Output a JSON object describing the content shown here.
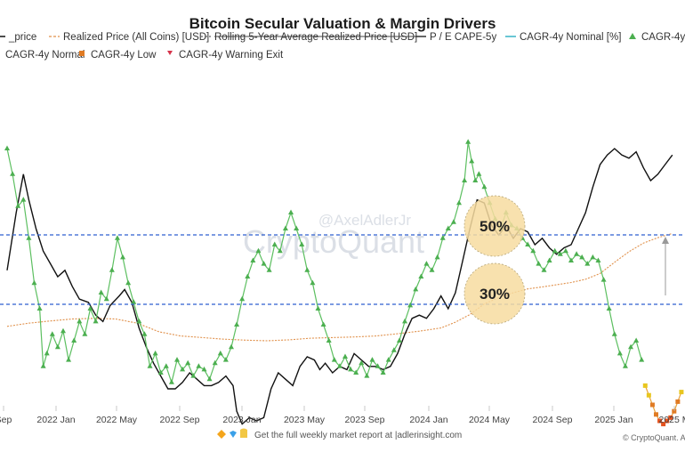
{
  "chart_data": {
    "type": "line",
    "title": "Bitcoin Secular Valuation & Margin Drivers",
    "legend": [
      {
        "label": "_price",
        "color": "#111111",
        "marker": "line",
        "style": "solid"
      },
      {
        "label": "Realized Price (All Coins) [USD]",
        "color": "#e0904a",
        "marker": "line",
        "style": "dashed"
      },
      {
        "label": "Rolling 5-Year Average Realized Price [USD]",
        "color": "#666666",
        "marker": "line",
        "style": "dashed"
      },
      {
        "label": "P / E CAPE-5y",
        "color": "#333333",
        "marker": "line",
        "style": "solid"
      },
      {
        "label": "CAGR-4y Nominal [%]",
        "color": "#37b3c7",
        "marker": "line",
        "style": "solid"
      },
      {
        "label": "CAGR-4y",
        "color": "#4caf50",
        "marker": "triangle",
        "style": "marker"
      },
      {
        "label": "CAGR-4y Normal",
        "color": "#4caf50",
        "marker": "triangle",
        "style": "marker"
      },
      {
        "label": "CAGR-4y Low",
        "color": "#e07b24",
        "marker": "square",
        "style": "marker"
      },
      {
        "label": "CAGR-4y Warning Exit",
        "color": "#d6334b",
        "marker": "triangle-down",
        "style": "marker"
      }
    ],
    "x_ticks": [
      "Sep",
      "2022 Jan",
      "2022 May",
      "2022 Sep",
      "2023 Jan",
      "2023 May",
      "2023 Sep",
      "2024 Jan",
      "2024 May",
      "2024 Sep",
      "2025 Jan",
      "2025 M"
    ],
    "x_range": [
      "2021-07",
      "2025-04"
    ],
    "reference_lines": [
      {
        "label": "50%",
        "value": 50,
        "color": "#2f5fd0",
        "style": "dashed"
      },
      {
        "label": "30%",
        "value": 30,
        "color": "#2f5fd0",
        "style": "dashed"
      }
    ],
    "grid": false,
    "legend_position": "top",
    "series": [
      {
        "name": "P / E CAPE-5y",
        "color": "#111111",
        "points": [
          [
            2021.58,
            0.42
          ],
          [
            2021.63,
            0.6
          ],
          [
            2021.67,
            0.72
          ],
          [
            2021.7,
            0.64
          ],
          [
            2021.74,
            0.55
          ],
          [
            2021.78,
            0.48
          ],
          [
            2021.82,
            0.44
          ],
          [
            2021.86,
            0.4
          ],
          [
            2021.9,
            0.42
          ],
          [
            2021.94,
            0.37
          ],
          [
            2021.98,
            0.33
          ],
          [
            2022.03,
            0.32
          ],
          [
            2022.07,
            0.28
          ],
          [
            2022.11,
            0.26
          ],
          [
            2022.15,
            0.31
          ],
          [
            2022.2,
            0.34
          ],
          [
            2022.23,
            0.36
          ],
          [
            2022.27,
            0.32
          ],
          [
            2022.31,
            0.24
          ],
          [
            2022.35,
            0.18
          ],
          [
            2022.39,
            0.13
          ],
          [
            2022.43,
            0.09
          ],
          [
            2022.47,
            0.05
          ],
          [
            2022.51,
            0.05
          ],
          [
            2022.55,
            0.07
          ],
          [
            2022.59,
            0.1
          ],
          [
            2022.63,
            0.08
          ],
          [
            2022.67,
            0.06
          ],
          [
            2022.71,
            0.06
          ],
          [
            2022.75,
            0.07
          ],
          [
            2022.79,
            0.09
          ],
          [
            2022.83,
            0.06
          ],
          [
            2022.85,
            -0.02
          ],
          [
            2022.88,
            -0.06
          ],
          [
            2022.92,
            -0.04
          ],
          [
            2022.96,
            -0.05
          ],
          [
            2023.0,
            -0.04
          ],
          [
            2023.04,
            0.05
          ],
          [
            2023.08,
            0.1
          ],
          [
            2023.12,
            0.08
          ],
          [
            2023.16,
            0.06
          ],
          [
            2023.2,
            0.12
          ],
          [
            2023.24,
            0.15
          ],
          [
            2023.28,
            0.14
          ],
          [
            2023.31,
            0.11
          ],
          [
            2023.34,
            0.13
          ],
          [
            2023.38,
            0.1
          ],
          [
            2023.42,
            0.12
          ],
          [
            2023.46,
            0.11
          ],
          [
            2023.5,
            0.16
          ],
          [
            2023.54,
            0.14
          ],
          [
            2023.58,
            0.12
          ],
          [
            2023.62,
            0.12
          ],
          [
            2023.66,
            0.11
          ],
          [
            2023.7,
            0.12
          ],
          [
            2023.74,
            0.16
          ],
          [
            2023.78,
            0.22
          ],
          [
            2023.82,
            0.27
          ],
          [
            2023.86,
            0.28
          ],
          [
            2023.9,
            0.27
          ],
          [
            2023.94,
            0.3
          ],
          [
            2023.98,
            0.34
          ],
          [
            2024.02,
            0.3
          ],
          [
            2024.06,
            0.35
          ],
          [
            2024.1,
            0.45
          ],
          [
            2024.14,
            0.55
          ],
          [
            2024.18,
            0.64
          ],
          [
            2024.22,
            0.63
          ],
          [
            2024.26,
            0.56
          ],
          [
            2024.3,
            0.53
          ],
          [
            2024.34,
            0.56
          ],
          [
            2024.38,
            0.52
          ],
          [
            2024.42,
            0.55
          ],
          [
            2024.46,
            0.54
          ],
          [
            2024.5,
            0.5
          ],
          [
            2024.54,
            0.52
          ],
          [
            2024.58,
            0.49
          ],
          [
            2024.62,
            0.47
          ],
          [
            2024.66,
            0.49
          ],
          [
            2024.7,
            0.5
          ],
          [
            2024.74,
            0.55
          ],
          [
            2024.78,
            0.6
          ],
          [
            2024.82,
            0.68
          ],
          [
            2024.86,
            0.75
          ],
          [
            2024.9,
            0.78
          ],
          [
            2024.94,
            0.8
          ],
          [
            2024.98,
            0.78
          ],
          [
            2025.02,
            0.77
          ],
          [
            2025.06,
            0.79
          ],
          [
            2025.1,
            0.74
          ],
          [
            2025.14,
            0.7
          ],
          [
            2025.18,
            0.72
          ],
          [
            2025.22,
            0.75
          ],
          [
            2025.26,
            0.78
          ]
        ]
      },
      {
        "name": "Realized Price (All Coins) [USD]",
        "color": "#e0904a",
        "points": [
          [
            2021.58,
            0.245
          ],
          [
            2021.7,
            0.255
          ],
          [
            2021.82,
            0.262
          ],
          [
            2021.94,
            0.268
          ],
          [
            2022.06,
            0.27
          ],
          [
            2022.18,
            0.268
          ],
          [
            2022.3,
            0.255
          ],
          [
            2022.42,
            0.228
          ],
          [
            2022.54,
            0.215
          ],
          [
            2022.66,
            0.21
          ],
          [
            2022.78,
            0.205
          ],
          [
            2022.9,
            0.202
          ],
          [
            2023.02,
            0.2
          ],
          [
            2023.14,
            0.203
          ],
          [
            2023.26,
            0.208
          ],
          [
            2023.38,
            0.21
          ],
          [
            2023.5,
            0.212
          ],
          [
            2023.62,
            0.215
          ],
          [
            2023.74,
            0.222
          ],
          [
            2023.86,
            0.23
          ],
          [
            2023.98,
            0.24
          ],
          [
            2024.06,
            0.258
          ],
          [
            2024.14,
            0.282
          ],
          [
            2024.22,
            0.315
          ],
          [
            2024.3,
            0.335
          ],
          [
            2024.38,
            0.35
          ],
          [
            2024.46,
            0.362
          ],
          [
            2024.54,
            0.368
          ],
          [
            2024.62,
            0.375
          ],
          [
            2024.7,
            0.382
          ],
          [
            2024.78,
            0.392
          ],
          [
            2024.86,
            0.41
          ],
          [
            2024.94,
            0.445
          ],
          [
            2025.02,
            0.478
          ],
          [
            2025.1,
            0.505
          ],
          [
            2025.18,
            0.522
          ],
          [
            2025.26,
            0.535
          ]
        ]
      },
      {
        "name": "CAGR-4y",
        "color": "#4caf50",
        "points": [
          [
            2021.58,
            0.8
          ],
          [
            2021.61,
            0.72
          ],
          [
            2021.64,
            0.62
          ],
          [
            2021.67,
            0.64
          ],
          [
            2021.7,
            0.52
          ],
          [
            2021.73,
            0.38
          ],
          [
            2021.76,
            0.3
          ],
          [
            2021.78,
            0.12
          ],
          [
            2021.8,
            0.16
          ],
          [
            2021.83,
            0.22
          ],
          [
            2021.86,
            0.18
          ],
          [
            2021.89,
            0.23
          ],
          [
            2021.92,
            0.14
          ],
          [
            2021.95,
            0.2
          ],
          [
            2021.98,
            0.26
          ],
          [
            2022.01,
            0.22
          ],
          [
            2022.04,
            0.3
          ],
          [
            2022.07,
            0.26
          ],
          [
            2022.1,
            0.35
          ],
          [
            2022.13,
            0.33
          ],
          [
            2022.16,
            0.42
          ],
          [
            2022.19,
            0.52
          ],
          [
            2022.22,
            0.46
          ],
          [
            2022.25,
            0.38
          ],
          [
            2022.28,
            0.32
          ],
          [
            2022.31,
            0.26
          ],
          [
            2022.34,
            0.22
          ],
          [
            2022.37,
            0.12
          ],
          [
            2022.4,
            0.16
          ],
          [
            2022.43,
            0.1
          ],
          [
            2022.46,
            0.12
          ],
          [
            2022.49,
            0.07
          ],
          [
            2022.52,
            0.14
          ],
          [
            2022.55,
            0.11
          ],
          [
            2022.58,
            0.13
          ],
          [
            2022.61,
            0.09
          ],
          [
            2022.64,
            0.12
          ],
          [
            2022.67,
            0.11
          ],
          [
            2022.7,
            0.08
          ],
          [
            2022.73,
            0.13
          ],
          [
            2022.76,
            0.16
          ],
          [
            2022.79,
            0.14
          ],
          [
            2022.82,
            0.18
          ],
          [
            2022.85,
            0.25
          ],
          [
            2022.88,
            0.33
          ],
          [
            2022.91,
            0.4
          ],
          [
            2022.94,
            0.45
          ],
          [
            2022.97,
            0.48
          ],
          [
            2023.0,
            0.44
          ],
          [
            2023.03,
            0.42
          ],
          [
            2023.06,
            0.5
          ],
          [
            2023.09,
            0.48
          ],
          [
            2023.12,
            0.55
          ],
          [
            2023.15,
            0.6
          ],
          [
            2023.18,
            0.55
          ],
          [
            2023.21,
            0.5
          ],
          [
            2023.24,
            0.42
          ],
          [
            2023.27,
            0.38
          ],
          [
            2023.3,
            0.3
          ],
          [
            2023.33,
            0.25
          ],
          [
            2023.36,
            0.2
          ],
          [
            2023.39,
            0.14
          ],
          [
            2023.42,
            0.12
          ],
          [
            2023.45,
            0.15
          ],
          [
            2023.48,
            0.11
          ],
          [
            2023.51,
            0.1
          ],
          [
            2023.54,
            0.13
          ],
          [
            2023.57,
            0.09
          ],
          [
            2023.6,
            0.14
          ],
          [
            2023.63,
            0.12
          ],
          [
            2023.66,
            0.1
          ],
          [
            2023.69,
            0.14
          ],
          [
            2023.72,
            0.17
          ],
          [
            2023.75,
            0.2
          ],
          [
            2023.78,
            0.26
          ],
          [
            2023.81,
            0.31
          ],
          [
            2023.84,
            0.36
          ],
          [
            2023.87,
            0.4
          ],
          [
            2023.9,
            0.44
          ],
          [
            2023.93,
            0.42
          ],
          [
            2023.96,
            0.46
          ],
          [
            2023.99,
            0.52
          ],
          [
            2024.02,
            0.55
          ],
          [
            2024.05,
            0.57
          ],
          [
            2024.08,
            0.63
          ],
          [
            2024.11,
            0.7
          ],
          [
            2024.13,
            0.82
          ],
          [
            2024.15,
            0.76
          ],
          [
            2024.17,
            0.7
          ],
          [
            2024.19,
            0.72
          ],
          [
            2024.22,
            0.68
          ],
          [
            2024.25,
            0.63
          ],
          [
            2024.28,
            0.58
          ],
          [
            2024.31,
            0.55
          ],
          [
            2024.34,
            0.6
          ],
          [
            2024.37,
            0.56
          ],
          [
            2024.4,
            0.55
          ],
          [
            2024.43,
            0.52
          ],
          [
            2024.46,
            0.5
          ],
          [
            2024.49,
            0.48
          ],
          [
            2024.52,
            0.44
          ],
          [
            2024.55,
            0.42
          ],
          [
            2024.58,
            0.45
          ],
          [
            2024.61,
            0.48
          ],
          [
            2024.64,
            0.47
          ],
          [
            2024.67,
            0.48
          ],
          [
            2024.7,
            0.45
          ],
          [
            2024.73,
            0.47
          ],
          [
            2024.76,
            0.46
          ],
          [
            2024.79,
            0.44
          ],
          [
            2024.82,
            0.46
          ],
          [
            2024.85,
            0.45
          ],
          [
            2024.88,
            0.39
          ],
          [
            2024.91,
            0.3
          ],
          [
            2024.94,
            0.22
          ],
          [
            2024.97,
            0.16
          ],
          [
            2025.0,
            0.12
          ],
          [
            2025.03,
            0.18
          ],
          [
            2025.06,
            0.2
          ],
          [
            2025.09,
            0.14
          ]
        ]
      },
      {
        "name": "CAGR-4y Low",
        "color": "#e07b24",
        "points": [
          [
            2025.11,
            0.06
          ],
          [
            2025.13,
            0.03
          ],
          [
            2025.15,
            0.0
          ],
          [
            2025.17,
            -0.03
          ],
          [
            2025.19,
            -0.05
          ],
          [
            2025.21,
            -0.06
          ],
          [
            2025.23,
            -0.05
          ],
          [
            2025.25,
            -0.04
          ],
          [
            2025.27,
            -0.02
          ],
          [
            2025.29,
            0.01
          ],
          [
            2025.31,
            0.04
          ]
        ]
      }
    ],
    "annotations": [
      "50%",
      "30%"
    ]
  },
  "watermark": {
    "handle": "@AxelAdlerJr",
    "brand": "CryptoQuant"
  },
  "footer": {
    "text": "Get the full weekly market report at |adlerinsight.com",
    "credit": "© CryptoQuant. All ri"
  }
}
